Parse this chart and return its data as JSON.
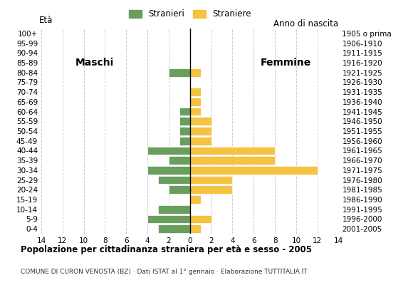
{
  "age_groups": [
    "0-4",
    "5-9",
    "10-14",
    "15-19",
    "20-24",
    "25-29",
    "30-34",
    "35-39",
    "40-44",
    "45-49",
    "50-54",
    "55-59",
    "60-64",
    "65-69",
    "70-74",
    "75-79",
    "80-84",
    "85-89",
    "90-94",
    "95-99",
    "100+"
  ],
  "birth_years": [
    "2001-2005",
    "1996-2000",
    "1991-1995",
    "1986-1990",
    "1981-1985",
    "1976-1980",
    "1971-1975",
    "1966-1970",
    "1961-1965",
    "1956-1960",
    "1951-1955",
    "1946-1950",
    "1941-1945",
    "1936-1940",
    "1931-1935",
    "1926-1930",
    "1921-1925",
    "1916-1920",
    "1911-1915",
    "1906-1910",
    "1905 o prima"
  ],
  "males": [
    3,
    4,
    3,
    0,
    2,
    3,
    4,
    2,
    4,
    1,
    1,
    1,
    1,
    0,
    0,
    0,
    2,
    0,
    0,
    0,
    0
  ],
  "females": [
    1,
    2,
    0,
    1,
    4,
    4,
    12,
    8,
    8,
    2,
    2,
    2,
    1,
    1,
    1,
    0,
    1,
    0,
    0,
    0,
    0
  ],
  "male_color": "#6a9e5e",
  "female_color": "#f5c242",
  "background_color": "#ffffff",
  "grid_color": "#cccccc",
  "title": "Popolazione per cittadinanza straniera per età e sesso - 2005",
  "subtitle": "COMUNE DI CURON VENOSTA (BZ) · Dati ISTAT al 1° gennaio · Elaborazione TUTTITALIA.IT",
  "legend_male": "Stranieri",
  "legend_female": "Straniere",
  "label_eta": "Età",
  "label_anno": "Anno di nascita",
  "label_maschi": "Maschi",
  "label_femmine": "Femmine",
  "xlim": 14,
  "tick_fontsize": 7.5,
  "label_fontsize": 8.5
}
